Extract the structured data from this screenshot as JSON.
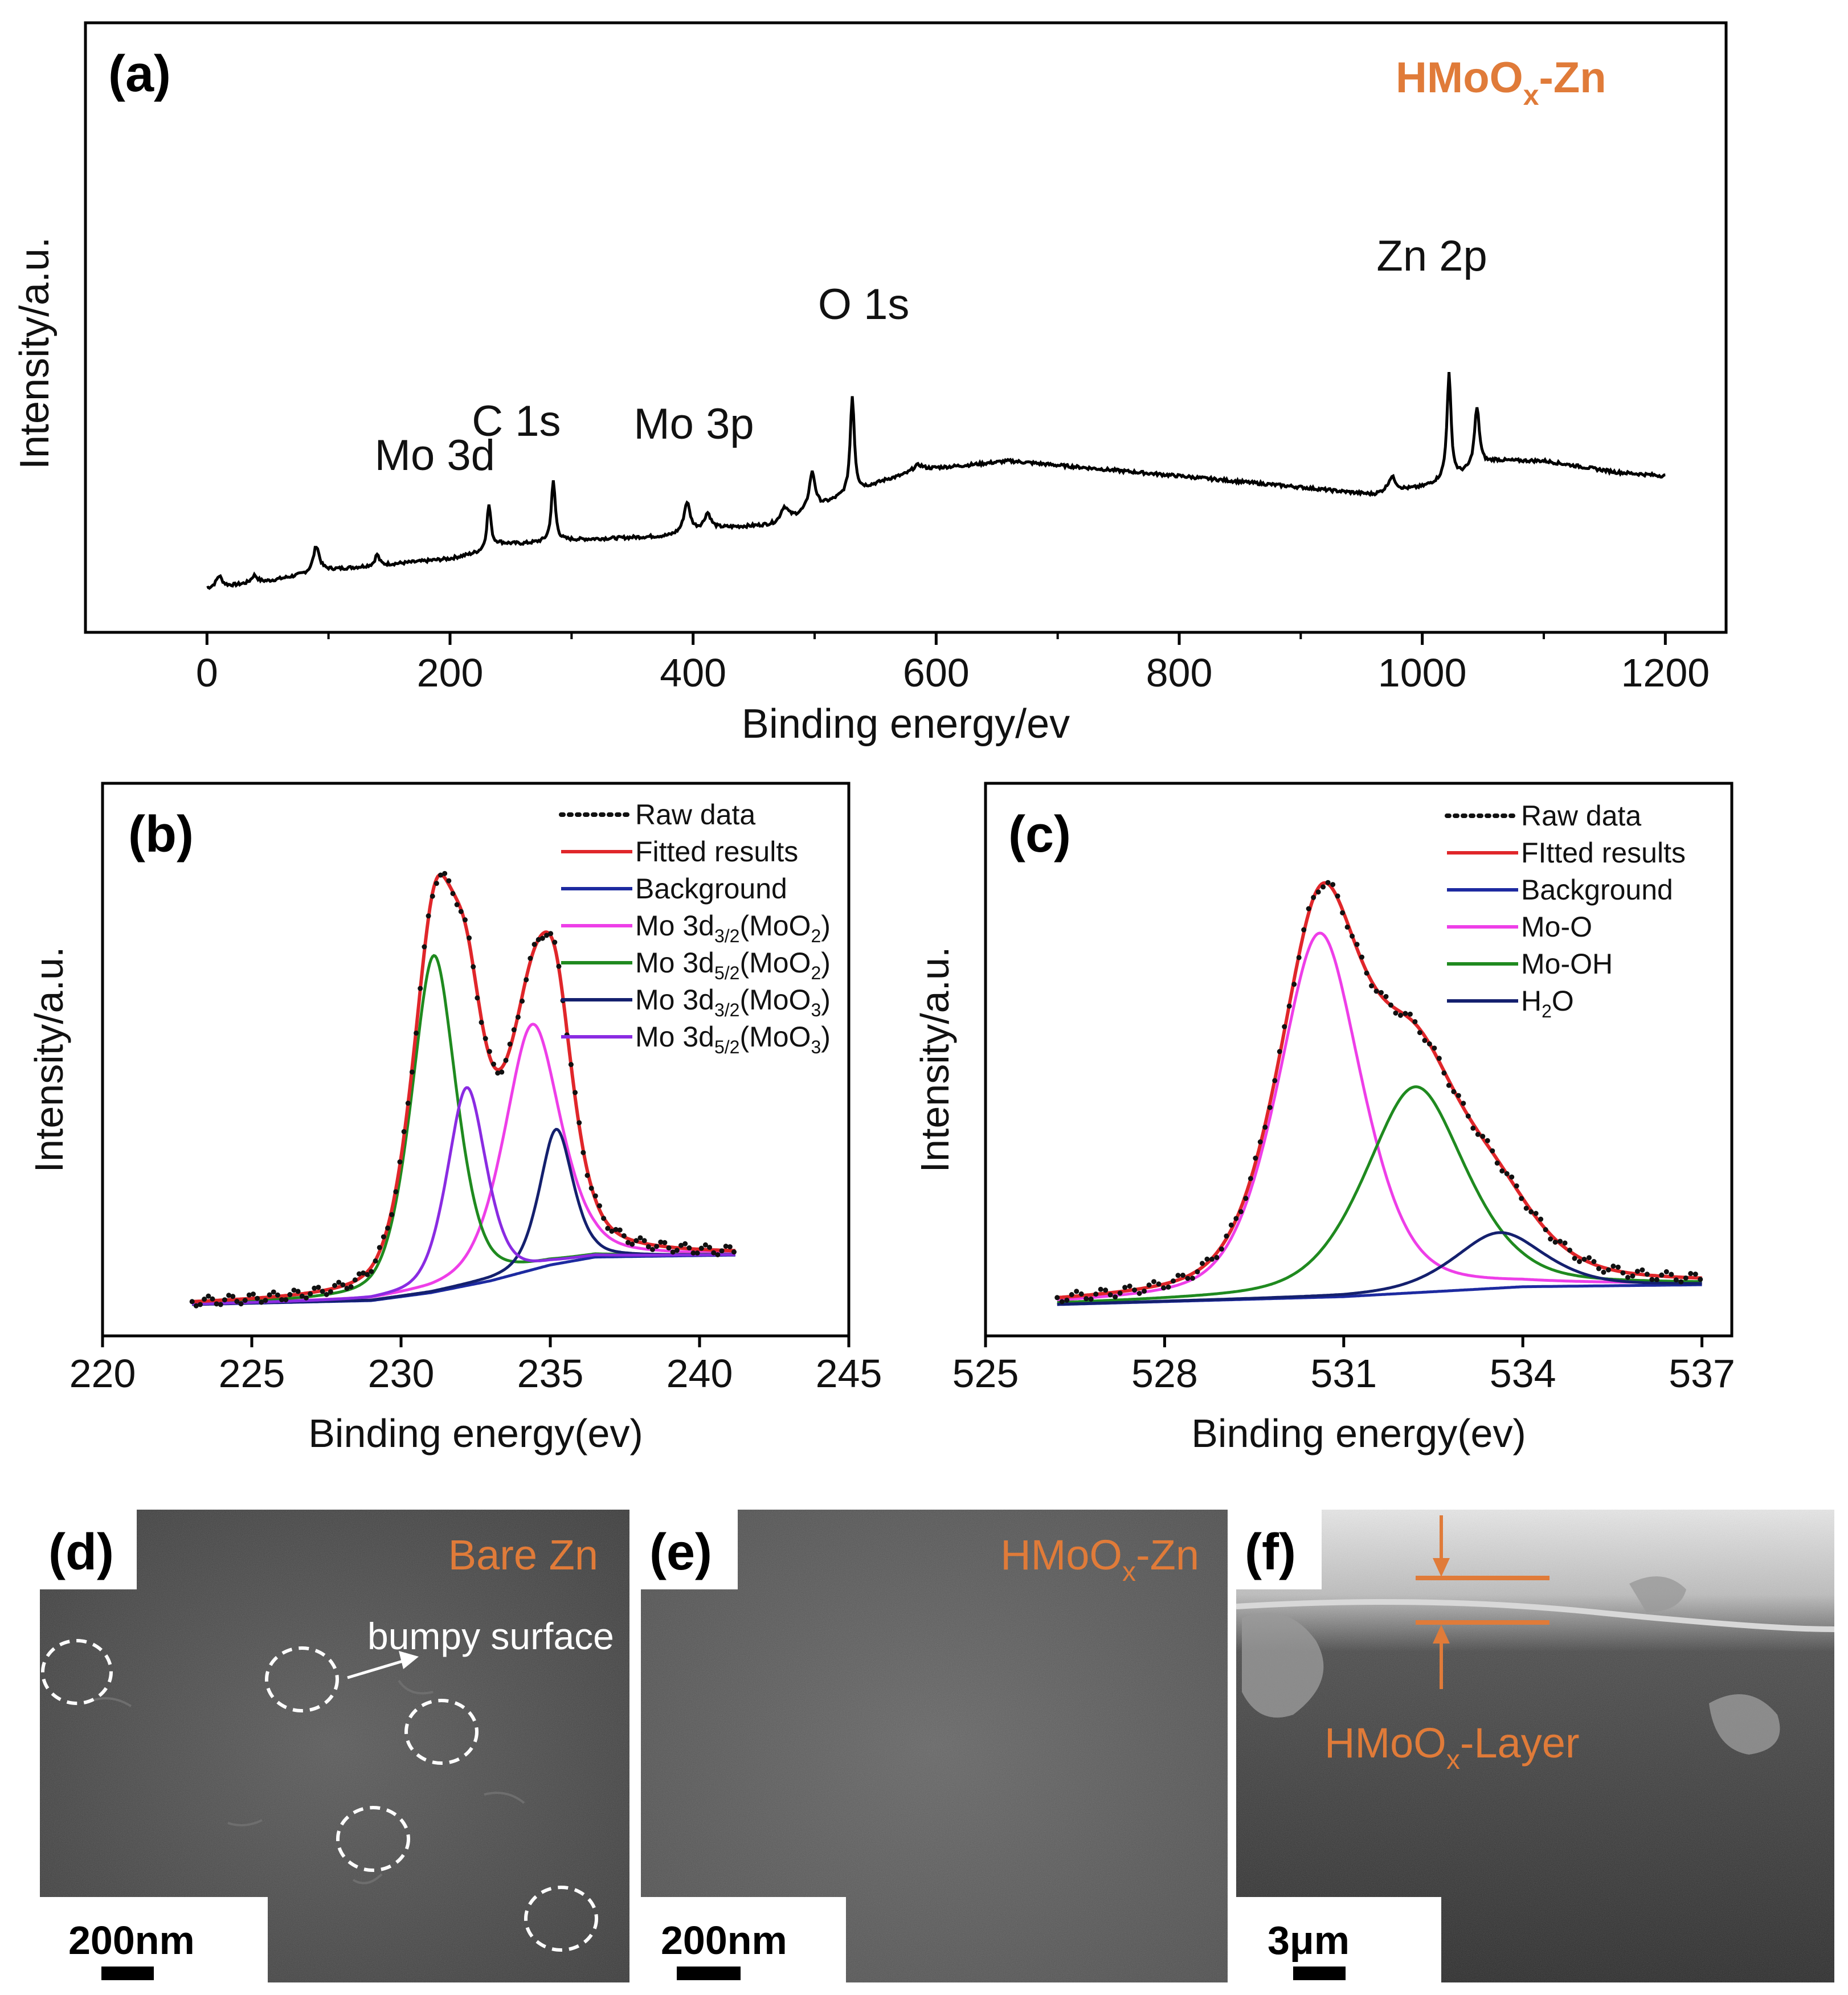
{
  "colors": {
    "raw": "#111111",
    "fitted": "#e0262a",
    "background": "#1d2aa0",
    "magenta": "#ee3ee8",
    "green": "#1f8a1f",
    "navy": "#14206e",
    "violet": "#8a2be2",
    "orange": "#e07b39",
    "sem_dark": "#4a4a4a"
  },
  "panels": {
    "a": {
      "tag": "(a)",
      "sample": "HMoOx-Zn",
      "sample_main": "HMoO",
      "sample_sub": "x",
      "sample_tail": "-Zn"
    },
    "b": {
      "tag": "(b)"
    },
    "c": {
      "tag": "(c)"
    },
    "d": {
      "tag": "(d)",
      "label": "Bare Zn",
      "annotation": "bumpy surface",
      "scale_bar": "200nm"
    },
    "e": {
      "tag": "(e)",
      "label_main": "HMoO",
      "label_sub": "x",
      "label_tail": "-Zn",
      "scale_bar": "200nm"
    },
    "f": {
      "tag": "(f)",
      "label_main": "HMoO",
      "label_sub": "x",
      "label_tail": "-Layer",
      "scale_bar": "3μm"
    }
  },
  "chart_data": [
    {
      "id": "a",
      "type": "line",
      "title": "",
      "xlabel": "Binding energy/ev",
      "ylabel": "Intensity/a.u.",
      "xlim": [
        -100,
        1250
      ],
      "ylim": [
        0,
        100
      ],
      "xticks": [
        0,
        200,
        400,
        600,
        800,
        1000,
        1200
      ],
      "peak_labels": [
        {
          "text": "Mo 3d",
          "x": 232
        },
        {
          "text": "C 1s",
          "x": 285
        },
        {
          "text": "Mo 3p",
          "x": 410
        },
        {
          "text": "O 1s",
          "x": 531
        },
        {
          "text": "Zn 2p",
          "x": 1022
        }
      ],
      "series": [
        {
          "name": "survey",
          "baseline": [
            [
              0,
              4
            ],
            [
              50,
              6
            ],
            [
              100,
              9
            ],
            [
              200,
              12
            ],
            [
              230,
              14
            ],
            [
              240,
              16
            ],
            [
              260,
              16
            ],
            [
              300,
              17
            ],
            [
              380,
              18
            ],
            [
              410,
              20
            ],
            [
              470,
              21
            ],
            [
              520,
              28
            ],
            [
              560,
              33
            ],
            [
              600,
              36
            ],
            [
              660,
              38
            ],
            [
              800,
              34
            ],
            [
              900,
              31
            ],
            [
              960,
              29
            ],
            [
              1000,
              31
            ],
            [
              1030,
              34
            ],
            [
              1060,
              38
            ],
            [
              1100,
              38
            ],
            [
              1160,
              35
            ],
            [
              1200,
              34
            ]
          ],
          "peaks": [
            [
              10,
              3,
              3
            ],
            [
              39,
              2,
              3
            ],
            [
              90,
              7,
              3
            ],
            [
              140,
              3,
              2
            ],
            [
              232,
              12,
              2
            ],
            [
              285,
              16,
              2
            ],
            [
              395,
              8,
              3
            ],
            [
              412,
              4,
              3
            ],
            [
              475,
              4,
              4
            ],
            [
              498,
              10,
              3
            ],
            [
              531,
              26,
              2
            ],
            [
              585,
              2,
              6
            ],
            [
              975,
              4,
              4
            ],
            [
              1022,
              28,
              2
            ],
            [
              1045,
              16,
              2.5
            ]
          ]
        }
      ]
    },
    {
      "id": "b",
      "type": "line",
      "xlabel": "Binding energy(ev)",
      "ylabel": "Intensity/a.u.",
      "xlim": [
        220,
        245
      ],
      "ylim": [
        0,
        100
      ],
      "xticks": [
        220,
        225,
        230,
        235,
        240,
        245
      ],
      "legend": [
        {
          "label": "Raw data",
          "style": "dotted",
          "color": "#111111"
        },
        {
          "label": "Fitted results",
          "color": "#e0262a"
        },
        {
          "label": "Background",
          "color": "#1d2aa0"
        },
        {
          "label_main": "Mo 3d",
          "label_sub": "3/2",
          "label_tail": "(MoO",
          "label_sub2": "2",
          "label_end": ")",
          "color": "#ee3ee8"
        },
        {
          "label_main": "Mo 3d",
          "label_sub": "5/2",
          "label_tail": "(MoO",
          "label_sub2": "2",
          "label_end": ")",
          "color": "#1f8a1f"
        },
        {
          "label_main": "Mo 3d",
          "label_sub": "3/2",
          "label_tail": "(MoO",
          "label_sub2": "3",
          "label_end": ")",
          "color": "#14206e"
        },
        {
          "label_main": "Mo 3d",
          "label_sub": "5/2",
          "label_tail": "(MoO",
          "label_sub2": "3",
          "label_end": ")",
          "color": "#8a2be2"
        }
      ],
      "x_range": [
        223,
        241.2
      ],
      "background": [
        [
          223,
          0
        ],
        [
          229,
          1
        ],
        [
          231,
          3
        ],
        [
          233,
          6
        ],
        [
          235,
          10
        ],
        [
          236.5,
          12
        ],
        [
          241.2,
          12.5
        ]
      ],
      "components": [
        {
          "name": "Mo 3d3/2(MoO2)",
          "center": 234.4,
          "height": 62,
          "width": 1.0,
          "color": "#ee3ee8"
        },
        {
          "name": "Mo 3d5/2(MoO2)",
          "center": 231.1,
          "height": 85,
          "width": 0.8,
          "color": "#1f8a1f"
        },
        {
          "name": "Mo 3d3/2(MoO3)",
          "center": 235.2,
          "height": 34,
          "width": 0.6,
          "color": "#14206e"
        },
        {
          "name": "Mo 3d5/2(MoO3)",
          "center": 232.2,
          "height": 50,
          "width": 0.7,
          "color": "#8a2be2"
        }
      ]
    },
    {
      "id": "c",
      "type": "line",
      "xlabel": "Binding energy(ev)",
      "ylabel": "Intensity/a.u.",
      "xlim": [
        525,
        537.5
      ],
      "ylim": [
        0,
        100
      ],
      "xticks": [
        525,
        528,
        531,
        534,
        537
      ],
      "legend": [
        {
          "label": "Raw data",
          "style": "dotted",
          "color": "#111111"
        },
        {
          "label": "FItted results",
          "color": "#e0262a"
        },
        {
          "label": "Background",
          "color": "#1d2aa0"
        },
        {
          "label": "Mo-O",
          "color": "#ee3ee8"
        },
        {
          "label": "Mo-OH",
          "color": "#1f8a1f"
        },
        {
          "label_main": "H",
          "label_sub": "2",
          "label_tail": "O",
          "color": "#14206e"
        }
      ],
      "x_range": [
        526.2,
        537
      ],
      "background": [
        [
          526.2,
          0
        ],
        [
          531,
          2
        ],
        [
          534,
          4.5
        ],
        [
          537,
          5
        ]
      ],
      "components": [
        {
          "name": "Mo-O",
          "center": 530.6,
          "height": 92,
          "width": 0.75,
          "color": "#ee3ee8"
        },
        {
          "name": "Mo-OH",
          "center": 532.2,
          "height": 52,
          "width": 0.9,
          "color": "#1f8a1f"
        },
        {
          "name": "H2O",
          "center": 533.6,
          "height": 14,
          "width": 0.8,
          "color": "#14206e"
        }
      ]
    }
  ]
}
